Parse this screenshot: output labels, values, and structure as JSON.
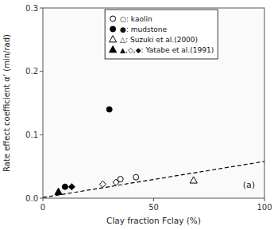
{
  "chart_data": {
    "type": "scatter",
    "x_label": "Clay fraction Fclay (%)",
    "y_label": "Rate effect coefficient  α’  (min/rad)",
    "annotations": [
      "(a)"
    ],
    "xlim": [
      0,
      100
    ],
    "ylim": [
      0,
      0.3
    ],
    "xticks": [
      0,
      50,
      100
    ],
    "yticks": [
      {
        "value": 0,
        "label": "0.0"
      },
      0.1,
      0.2,
      0.3
    ],
    "grid": false,
    "legend": "upper left",
    "series": [
      {
        "type": "line",
        "line_style": "dashed",
        "color": "#000000",
        "x": [
          0,
          100
        ],
        "values": [
          0.001,
          0.058
        ]
      },
      {
        "name": "○: kaolin",
        "marker": "circle",
        "color": "#ffffff",
        "x": [
          35,
          42
        ],
        "values": [
          0.03,
          0.033
        ]
      },
      {
        "name": "●: mudstone",
        "marker": "circle",
        "color": "#000000",
        "x": [
          10,
          30
        ],
        "values": [
          0.018,
          0.14
        ]
      },
      {
        "name": "△: Suzuki et al.(2000)",
        "marker": "triangle",
        "color": "#ffffff",
        "x": [
          68
        ],
        "values": [
          0.028
        ]
      },
      {
        "name": "▲,◇,◆: Yatabe et al.(1991)",
        "marker": "triangle",
        "color": "#000000",
        "x": [
          7
        ],
        "values": [
          0.01
        ]
      },
      {
        "marker": "diamond",
        "color": "#ffffff",
        "x": [
          27,
          33
        ],
        "values": [
          0.022,
          0.025
        ]
      },
      {
        "marker": "diamond",
        "color": "#000000",
        "x": [
          13
        ],
        "values": [
          0.018
        ]
      }
    ]
  }
}
